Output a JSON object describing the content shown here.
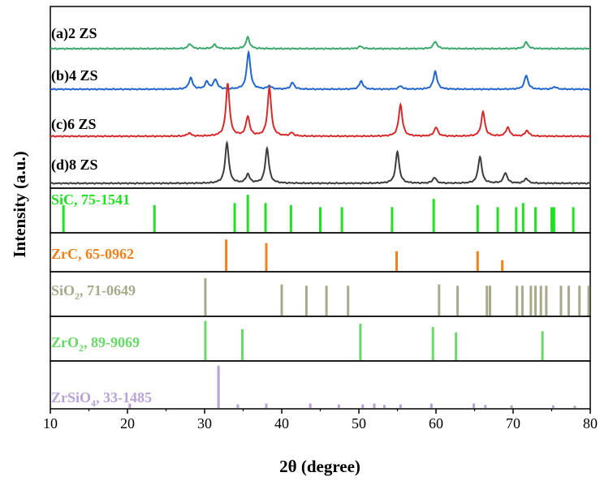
{
  "chart_data": {
    "type": "line",
    "title": "",
    "xlabel": "2θ (degree)",
    "ylabel": "Intensity (a.u.)",
    "xlim": [
      10,
      80
    ],
    "xticks": [
      "10",
      "20",
      "30",
      "40",
      "50",
      "60",
      "70",
      "80"
    ],
    "grid": false,
    "series": [
      {
        "name": "(a)2 ZS",
        "color": "#3aa86a",
        "peaks": [
          [
            28.1,
            6
          ],
          [
            31.3,
            5
          ],
          [
            35.6,
            14
          ],
          [
            50.2,
            3
          ],
          [
            59.9,
            9
          ],
          [
            71.7,
            8
          ]
        ]
      },
      {
        "name": "(b)4 ZS",
        "color": "#2166cc",
        "peaks": [
          [
            28.2,
            14
          ],
          [
            30.3,
            9
          ],
          [
            31.4,
            12
          ],
          [
            35.7,
            46
          ],
          [
            38.4,
            4
          ],
          [
            41.4,
            8
          ],
          [
            50.3,
            10
          ],
          [
            55.4,
            4
          ],
          [
            59.9,
            22
          ],
          [
            71.7,
            17
          ],
          [
            75.4,
            3
          ]
        ]
      },
      {
        "name": "(c)6 ZS",
        "color": "#d62a2a",
        "peaks": [
          [
            28.0,
            4
          ],
          [
            33.0,
            65
          ],
          [
            35.6,
            24
          ],
          [
            38.4,
            60
          ],
          [
            41.3,
            4
          ],
          [
            55.4,
            39
          ],
          [
            60.0,
            11
          ],
          [
            66.1,
            30
          ],
          [
            69.3,
            11
          ],
          [
            71.8,
            7
          ]
        ]
      },
      {
        "name": "(d)8 ZS",
        "color": "#3c3c3c",
        "peaks": [
          [
            32.9,
            50
          ],
          [
            35.6,
            11
          ],
          [
            38.1,
            43
          ],
          [
            55.0,
            39
          ],
          [
            59.8,
            7
          ],
          [
            65.7,
            33
          ],
          [
            69.0,
            13
          ],
          [
            71.7,
            6
          ]
        ]
      }
    ],
    "references": [
      {
        "name": "SiC, 75-1541",
        "color": "#22e022",
        "label_parts": [
          "SiC, 75-1541"
        ],
        "peaks": [
          [
            11.7,
            0.65
          ],
          [
            23.5,
            0.65
          ],
          [
            33.9,
            0.7
          ],
          [
            35.6,
            0.9
          ],
          [
            37.9,
            0.7
          ],
          [
            41.2,
            0.65
          ],
          [
            45.0,
            0.6
          ],
          [
            47.8,
            0.6
          ],
          [
            54.3,
            0.6
          ],
          [
            59.7,
            0.8
          ],
          [
            65.4,
            0.65
          ],
          [
            68.0,
            0.6
          ],
          [
            70.4,
            0.6
          ],
          [
            71.3,
            0.7
          ],
          [
            72.9,
            0.6
          ],
          [
            75.0,
            0.6
          ],
          [
            75.3,
            0.6
          ],
          [
            77.8,
            0.6
          ]
        ]
      },
      {
        "name": "ZrC, 65-0962",
        "color": "#f0821e",
        "label_parts": [
          "ZrC, 65-0962"
        ],
        "peaks": [
          [
            32.8,
            0.88
          ],
          [
            38.0,
            0.78
          ],
          [
            54.9,
            0.55
          ],
          [
            65.4,
            0.55
          ],
          [
            68.6,
            0.3
          ]
        ]
      },
      {
        "name": "SiO2, 71-0649",
        "color": "#a8a88a",
        "label_parts": [
          "SiO",
          "2",
          ", 71-0649"
        ],
        "peaks": [
          [
            30.1,
            0.9
          ],
          [
            40.0,
            0.75
          ],
          [
            43.2,
            0.72
          ],
          [
            45.8,
            0.72
          ],
          [
            48.6,
            0.72
          ],
          [
            60.4,
            0.75
          ],
          [
            62.8,
            0.72
          ],
          [
            66.6,
            0.72
          ],
          [
            67.0,
            0.72
          ],
          [
            70.5,
            0.72
          ],
          [
            71.2,
            0.72
          ],
          [
            72.3,
            0.72
          ],
          [
            72.9,
            0.72
          ],
          [
            73.6,
            0.72
          ],
          [
            74.3,
            0.72
          ],
          [
            76.2,
            0.72
          ],
          [
            77.2,
            0.72
          ],
          [
            78.6,
            0.72
          ],
          [
            79.8,
            0.72
          ]
        ]
      },
      {
        "name": "ZrO2, 89-9069",
        "color": "#66d966",
        "label_parts": [
          "ZrO",
          "2",
          ", 89-9069"
        ],
        "peaks": [
          [
            30.1,
            0.95
          ],
          [
            34.9,
            0.75
          ],
          [
            50.2,
            0.88
          ],
          [
            59.6,
            0.8
          ],
          [
            62.6,
            0.67
          ],
          [
            73.8,
            0.7
          ]
        ]
      },
      {
        "name": "ZrSiO4, 33-1485",
        "color": "#b8a2d6",
        "label_parts": [
          "ZrSiO",
          "4",
          ", 33-1485"
        ],
        "peaks": [
          [
            20.3,
            0.1
          ],
          [
            31.8,
            0.95
          ],
          [
            34.3,
            0.08
          ],
          [
            38.0,
            0.1
          ],
          [
            43.7,
            0.1
          ],
          [
            47.4,
            0.08
          ],
          [
            50.5,
            0.08
          ],
          [
            52.0,
            0.1
          ],
          [
            53.3,
            0.07
          ],
          [
            55.4,
            0.08
          ],
          [
            59.4,
            0.1
          ],
          [
            64.9,
            0.1
          ],
          [
            66.4,
            0.07
          ],
          [
            69.8,
            0.06
          ],
          [
            75.2,
            0.06
          ],
          [
            78.0,
            0.05
          ]
        ]
      }
    ]
  }
}
